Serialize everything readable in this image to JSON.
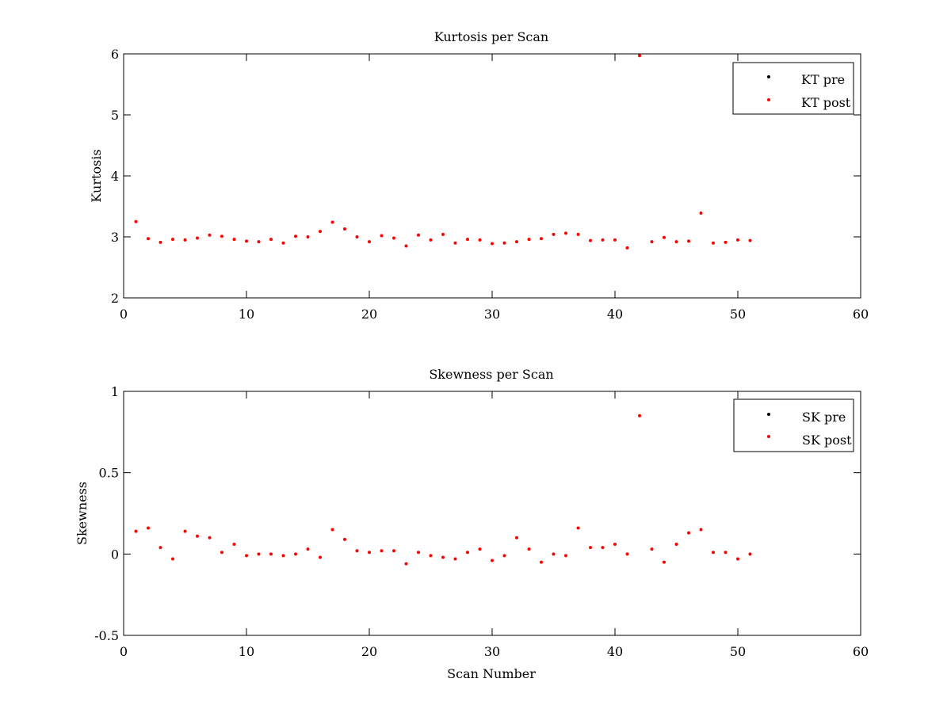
{
  "chart_data": [
    {
      "type": "scatter",
      "title": "Kurtosis per Scan",
      "xlabel": "",
      "ylabel": "Kurtosis",
      "xlim": [
        0,
        60
      ],
      "ylim": [
        2,
        6
      ],
      "xticks": [
        0,
        10,
        20,
        30,
        40,
        50,
        60
      ],
      "yticks": [
        2,
        3,
        4,
        5,
        6
      ],
      "grid": false,
      "legend_position": "top-right",
      "series": [
        {
          "name": "KT pre",
          "color": "#000000",
          "marker": "dot",
          "x": [],
          "y": []
        },
        {
          "name": "KT post",
          "color": "#ff0000",
          "marker": "dot",
          "x": [
            1,
            2,
            3,
            4,
            5,
            6,
            7,
            8,
            9,
            10,
            11,
            12,
            13,
            14,
            15,
            16,
            17,
            18,
            19,
            20,
            21,
            22,
            23,
            24,
            25,
            26,
            27,
            28,
            29,
            30,
            31,
            32,
            33,
            34,
            35,
            36,
            37,
            38,
            39,
            40,
            41,
            42,
            43,
            44,
            45,
            46,
            47,
            48,
            49,
            50,
            51
          ],
          "y": [
            3.25,
            2.97,
            2.91,
            2.96,
            2.95,
            2.98,
            3.03,
            3.01,
            2.96,
            2.93,
            2.92,
            2.96,
            2.9,
            3.01,
            3.0,
            3.09,
            3.24,
            3.13,
            3.0,
            2.92,
            3.02,
            2.98,
            2.85,
            3.03,
            2.95,
            3.04,
            2.9,
            2.96,
            2.95,
            2.89,
            2.9,
            2.92,
            2.96,
            2.97,
            3.04,
            3.06,
            3.04,
            2.94,
            2.95,
            2.95,
            2.82,
            5.97,
            2.92,
            2.99,
            2.92,
            2.93,
            3.39,
            2.9,
            2.91,
            2.95,
            2.94
          ]
        }
      ]
    },
    {
      "type": "scatter",
      "title": "Skewness per Scan",
      "xlabel": "Scan Number",
      "ylabel": "Skewness",
      "xlim": [
        0,
        60
      ],
      "ylim": [
        -0.5,
        1
      ],
      "xticks": [
        0,
        10,
        20,
        30,
        40,
        50,
        60
      ],
      "yticks": [
        -0.5,
        0,
        0.5,
        1
      ],
      "grid": false,
      "legend_position": "top-right",
      "series": [
        {
          "name": "SK pre",
          "color": "#000000",
          "marker": "dot",
          "x": [],
          "y": []
        },
        {
          "name": "SK post",
          "color": "#ff0000",
          "marker": "dot",
          "x": [
            1,
            2,
            3,
            4,
            5,
            6,
            7,
            8,
            9,
            10,
            11,
            12,
            13,
            14,
            15,
            16,
            17,
            18,
            19,
            20,
            21,
            22,
            23,
            24,
            25,
            26,
            27,
            28,
            29,
            30,
            31,
            32,
            33,
            34,
            35,
            36,
            37,
            38,
            39,
            40,
            41,
            42,
            43,
            44,
            45,
            46,
            47,
            48,
            49,
            50,
            51
          ],
          "y": [
            0.14,
            0.16,
            0.04,
            -0.03,
            0.14,
            0.11,
            0.1,
            0.01,
            0.06,
            -0.01,
            0.0,
            0.0,
            -0.01,
            0.0,
            0.03,
            -0.02,
            0.15,
            0.09,
            0.02,
            0.01,
            0.02,
            0.02,
            -0.06,
            0.01,
            -0.01,
            -0.02,
            -0.03,
            0.01,
            0.03,
            -0.04,
            -0.01,
            0.1,
            0.03,
            -0.05,
            0.0,
            -0.01,
            0.16,
            0.04,
            0.04,
            0.06,
            0.0,
            0.85,
            0.03,
            -0.05,
            0.06,
            0.13,
            0.15,
            0.01,
            0.01,
            -0.03,
            0.0
          ]
        }
      ]
    }
  ]
}
